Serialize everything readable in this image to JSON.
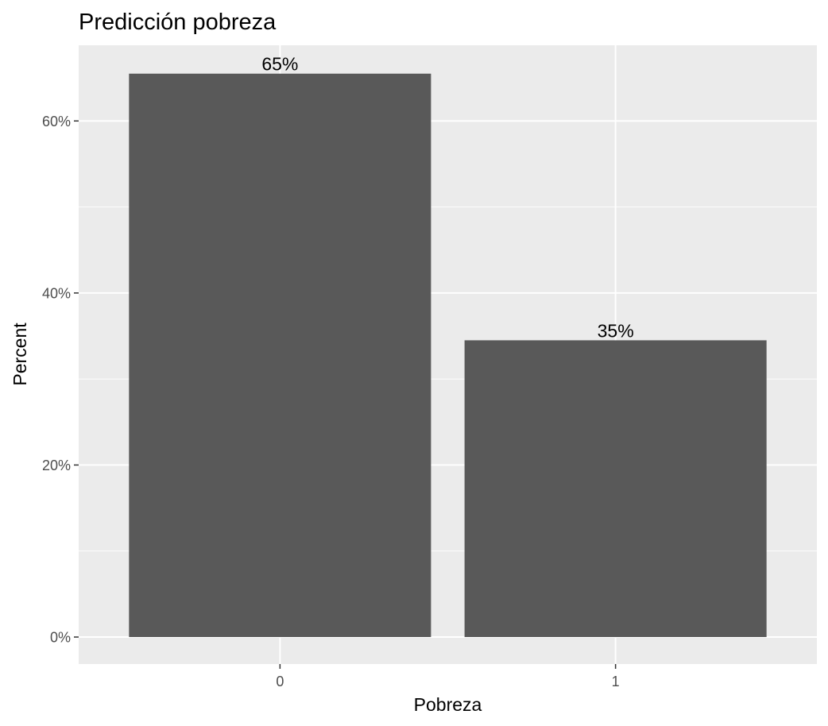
{
  "chart_data": {
    "type": "bar",
    "title": "Predicción pobreza",
    "xlabel": "Pobreza",
    "ylabel": "Percent",
    "categories": [
      "0",
      "1"
    ],
    "values": [
      65.5,
      34.5
    ],
    "data_labels": [
      "65%",
      "35%"
    ],
    "ylim": [
      0,
      68.8
    ],
    "yticks": [
      0,
      20,
      40,
      60
    ],
    "ytick_labels": [
      "0%",
      "20%",
      "40%",
      "60%"
    ],
    "grid": true,
    "legend": "none",
    "colors": {
      "bar": "#595959",
      "panel": "#ebebeb",
      "grid": "#ffffff",
      "tick_text": "#4d4d4d",
      "tick_mark": "#333333"
    }
  }
}
